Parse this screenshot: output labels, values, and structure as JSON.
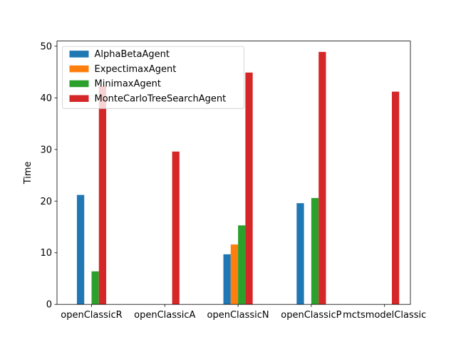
{
  "chart_data": {
    "type": "bar",
    "title": "",
    "xlabel": "",
    "ylabel": "Time",
    "ylim": [
      0,
      51
    ],
    "yticks": [
      0,
      10,
      20,
      30,
      40,
      50
    ],
    "grid": false,
    "legend_position": "top-left",
    "categories": [
      "openClassicR",
      "openClassicA",
      "openClassicN",
      "openClassicP",
      "mctsmodelClassic"
    ],
    "series": [
      {
        "name": "AlphaBetaAgent",
        "color": "#1f77b4",
        "values": [
          21.2,
          null,
          9.7,
          19.6,
          null
        ]
      },
      {
        "name": "ExpectimaxAgent",
        "color": "#ff7f0e",
        "values": [
          null,
          null,
          11.6,
          null,
          null
        ]
      },
      {
        "name": "MinimaxAgent",
        "color": "#2ca02c",
        "values": [
          6.4,
          null,
          15.3,
          20.6,
          null
        ]
      },
      {
        "name": "MonteCarloTreeSearchAgent",
        "color": "#d62728",
        "values": [
          42.3,
          29.6,
          44.9,
          48.9,
          41.2
        ]
      }
    ]
  }
}
